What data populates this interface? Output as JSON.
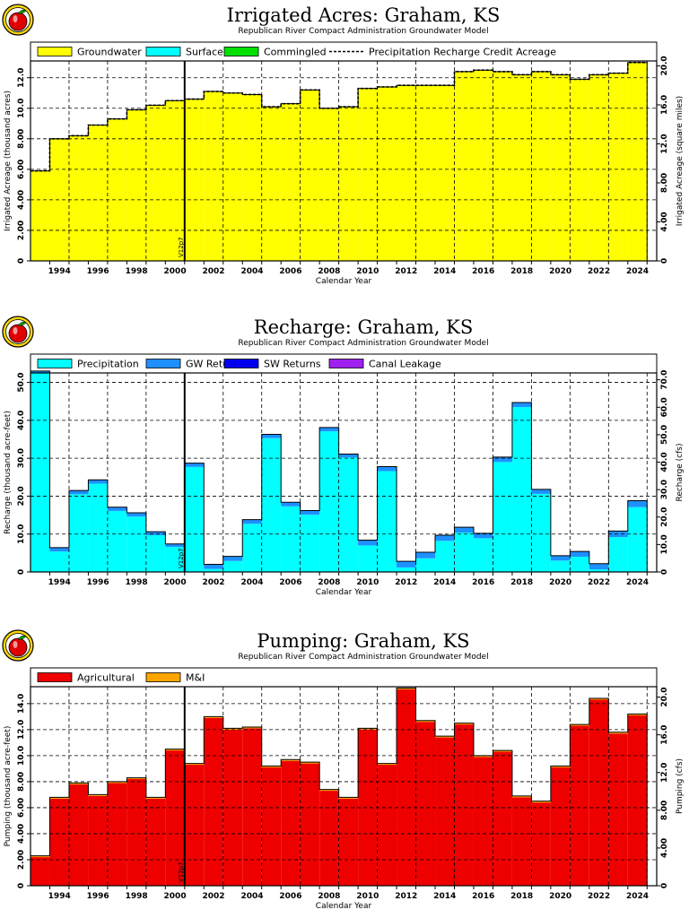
{
  "chart_data": [
    {
      "type": "bar",
      "title": "Irrigated Acres: Graham, KS",
      "subtitle": "Republican River Compact Administration Groundwater Model",
      "xlabel": "Calendar Year",
      "ylabel": "Irrigated Acreage (thousand acres)",
      "ylabel_right": "Irrigated Acreage (square miles)",
      "x_ticks": [
        "1994",
        "1996",
        "1998",
        "2000",
        "2002",
        "2004",
        "2006",
        "2008",
        "2010",
        "2012",
        "2014",
        "2016",
        "2018",
        "2020",
        "2022",
        "2024"
      ],
      "y_ticks": [
        "0",
        "2.00",
        "4.00",
        "6.00",
        "8.00",
        "10.0",
        "12.0"
      ],
      "y2_ticks": [
        "0",
        "4.00",
        "8.00",
        "12.0",
        "16.0",
        "20.0"
      ],
      "ylim": [
        0,
        13.1
      ],
      "y2lim": [
        0,
        20.5
      ],
      "grid": true,
      "legend_position": "top",
      "marker_label": "V12p7",
      "marker_x": 2000.5,
      "categories": [
        1993,
        1994,
        1995,
        1996,
        1997,
        1998,
        1999,
        2000,
        2001,
        2002,
        2003,
        2004,
        2005,
        2006,
        2007,
        2008,
        2009,
        2010,
        2011,
        2012,
        2013,
        2014,
        2015,
        2016,
        2017,
        2018,
        2019,
        2020,
        2021,
        2022,
        2023,
        2024
      ],
      "series": [
        {
          "name": "Groundwater",
          "color": "#ffff00",
          "values": [
            5.9,
            8.0,
            8.2,
            8.9,
            9.3,
            9.9,
            10.2,
            10.5,
            10.6,
            11.1,
            11.0,
            10.9,
            10.1,
            10.3,
            11.2,
            10.0,
            10.1,
            11.3,
            11.4,
            11.5,
            11.5,
            11.5,
            12.4,
            12.5,
            12.4,
            12.2,
            12.4,
            12.2,
            11.9,
            12.2,
            12.3,
            13.0
          ]
        },
        {
          "name": "Surface Water",
          "color": "#00ffff",
          "values": [
            0,
            0,
            0,
            0,
            0,
            0,
            0,
            0,
            0,
            0,
            0,
            0,
            0,
            0,
            0,
            0,
            0,
            0,
            0,
            0,
            0,
            0,
            0,
            0,
            0,
            0,
            0,
            0,
            0,
            0,
            0,
            0
          ]
        },
        {
          "name": "Commingled",
          "color": "#00e000",
          "values": [
            0,
            0,
            0,
            0,
            0,
            0,
            0,
            0,
            0,
            0,
            0,
            0,
            0,
            0,
            0,
            0,
            0,
            0,
            0,
            0,
            0,
            0,
            0,
            0,
            0,
            0,
            0,
            0,
            0,
            0,
            0,
            0
          ]
        }
      ],
      "line_series": {
        "name": "Precipitation Recharge Credit Acreage",
        "values": [
          5.9,
          8.0,
          8.2,
          8.9,
          9.3,
          9.9,
          10.2,
          10.5,
          10.6,
          11.1,
          11.0,
          10.9,
          10.1,
          10.3,
          11.2,
          10.0,
          10.1,
          11.3,
          11.4,
          11.5,
          11.5,
          11.5,
          12.4,
          12.5,
          12.4,
          12.2,
          12.4,
          12.2,
          11.9,
          12.2,
          12.3,
          13.0
        ]
      }
    },
    {
      "type": "bar",
      "title": "Recharge: Graham, KS",
      "subtitle": "Republican River Compact Administration Groundwater Model",
      "xlabel": "Calendar Year",
      "ylabel": "Recharge (thousand acre-feet)",
      "ylabel_right": "Recharge (cfs)",
      "x_ticks": [
        "1994",
        "1996",
        "1998",
        "2000",
        "2002",
        "2004",
        "2006",
        "2008",
        "2010",
        "2012",
        "2014",
        "2016",
        "2018",
        "2020",
        "2022",
        "2024"
      ],
      "y_ticks": [
        "0",
        "10.0",
        "20.0",
        "30.0",
        "40.0",
        "50.0"
      ],
      "y2_ticks": [
        "0",
        "10.0",
        "20.0",
        "30.0",
        "40.0",
        "50.0",
        "60.0",
        "70.0"
      ],
      "ylim": [
        0,
        52.5
      ],
      "y2lim": [
        0,
        72.5
      ],
      "grid": true,
      "legend_position": "top",
      "marker_label": "V12p7",
      "marker_x": 2000.5,
      "categories": [
        1993,
        1994,
        1995,
        1996,
        1997,
        1998,
        1999,
        2000,
        2001,
        2002,
        2003,
        2004,
        2005,
        2006,
        2007,
        2008,
        2009,
        2010,
        2011,
        2012,
        2013,
        2014,
        2015,
        2016,
        2017,
        2018,
        2019,
        2020,
        2021,
        2022,
        2023,
        2024
      ],
      "series": [
        {
          "name": "Precipitation",
          "color": "#00ffff",
          "values": [
            52.5,
            5.4,
            20.5,
            23.3,
            16.1,
            14.6,
            9.7,
            6.6,
            27.7,
            0.8,
            2.9,
            12.7,
            35.3,
            17.3,
            15.1,
            37.1,
            30.2,
            7.0,
            26.6,
            1.2,
            3.6,
            8.2,
            10.4,
            8.9,
            29.0,
            43.5,
            20.6,
            3.0,
            4.0,
            0.7,
            9.2,
            17.1
          ]
        },
        {
          "name": "GW Returns",
          "color": "#1e90ff",
          "values": [
            0.5,
            1.0,
            1.0,
            1.0,
            1.0,
            1.0,
            0.9,
            0.8,
            1.0,
            1.2,
            1.2,
            1.1,
            1.0,
            1.1,
            1.1,
            1.0,
            0.9,
            1.4,
            1.2,
            1.6,
            1.6,
            1.5,
            1.4,
            1.3,
            1.3,
            1.2,
            1.2,
            1.3,
            1.4,
            1.5,
            1.6,
            1.7
          ]
        },
        {
          "name": "SW Returns",
          "color": "#0000ee",
          "values": [
            0,
            0,
            0,
            0,
            0,
            0,
            0,
            0,
            0,
            0,
            0,
            0,
            0,
            0,
            0,
            0,
            0,
            0,
            0,
            0,
            0,
            0,
            0,
            0,
            0,
            0,
            0,
            0,
            0,
            0,
            0,
            0
          ]
        },
        {
          "name": "Canal Leakage",
          "color": "#a020f0",
          "values": [
            0,
            0,
            0,
            0,
            0,
            0,
            0,
            0,
            0,
            0,
            0,
            0,
            0,
            0,
            0,
            0,
            0,
            0,
            0,
            0,
            0,
            0,
            0,
            0,
            0,
            0,
            0,
            0,
            0,
            0,
            0,
            0
          ]
        }
      ]
    },
    {
      "type": "bar",
      "title": "Pumping: Graham, KS",
      "subtitle": "Republican River Compact Administration Groundwater Model",
      "xlabel": "Calendar Year",
      "ylabel": "Pumping (thousand acre-feet)",
      "ylabel_right": "Pumping (cfs)",
      "x_ticks": [
        "1994",
        "1996",
        "1998",
        "2000",
        "2002",
        "2004",
        "2006",
        "2008",
        "2010",
        "2012",
        "2014",
        "2016",
        "2018",
        "2020",
        "2022",
        "2024"
      ],
      "y_ticks": [
        "0",
        "2.00",
        "4.00",
        "6.00",
        "8.00",
        "10.0",
        "12.0",
        "14.0"
      ],
      "y2_ticks": [
        "0",
        "4.00",
        "8.00",
        "12.0",
        "16.0",
        "20.0"
      ],
      "ylim": [
        0,
        15.3
      ],
      "y2lim": [
        0,
        21.1
      ],
      "grid": true,
      "legend_position": "top",
      "marker_label": "V12p7",
      "marker_x": 2000.5,
      "categories": [
        1993,
        1994,
        1995,
        1996,
        1997,
        1998,
        1999,
        2000,
        2001,
        2002,
        2003,
        2004,
        2005,
        2006,
        2007,
        2008,
        2009,
        2010,
        2011,
        2012,
        2013,
        2014,
        2015,
        2016,
        2017,
        2018,
        2019,
        2020,
        2021,
        2022,
        2023,
        2024
      ],
      "series": [
        {
          "name": "Agricultural",
          "color": "#ee0000",
          "values": [
            2.2,
            6.7,
            7.8,
            6.9,
            7.9,
            8.2,
            6.7,
            10.4,
            9.3,
            12.9,
            12.0,
            12.1,
            9.1,
            9.6,
            9.4,
            7.3,
            6.7,
            12.0,
            9.3,
            15.1,
            12.6,
            11.4,
            12.4,
            9.9,
            10.3,
            6.8,
            6.4,
            9.1,
            12.3,
            14.3,
            11.7,
            13.1
          ]
        },
        {
          "name": "M&I",
          "color": "#ffa500",
          "values": [
            0.1,
            0.1,
            0.1,
            0.1,
            0.1,
            0.1,
            0.1,
            0.1,
            0.1,
            0.1,
            0.1,
            0.1,
            0.1,
            0.1,
            0.1,
            0.1,
            0.1,
            0.1,
            0.1,
            0.1,
            0.1,
            0.1,
            0.1,
            0.1,
            0.1,
            0.1,
            0.1,
            0.1,
            0.1,
            0.1,
            0.1,
            0.1
          ]
        }
      ]
    }
  ]
}
